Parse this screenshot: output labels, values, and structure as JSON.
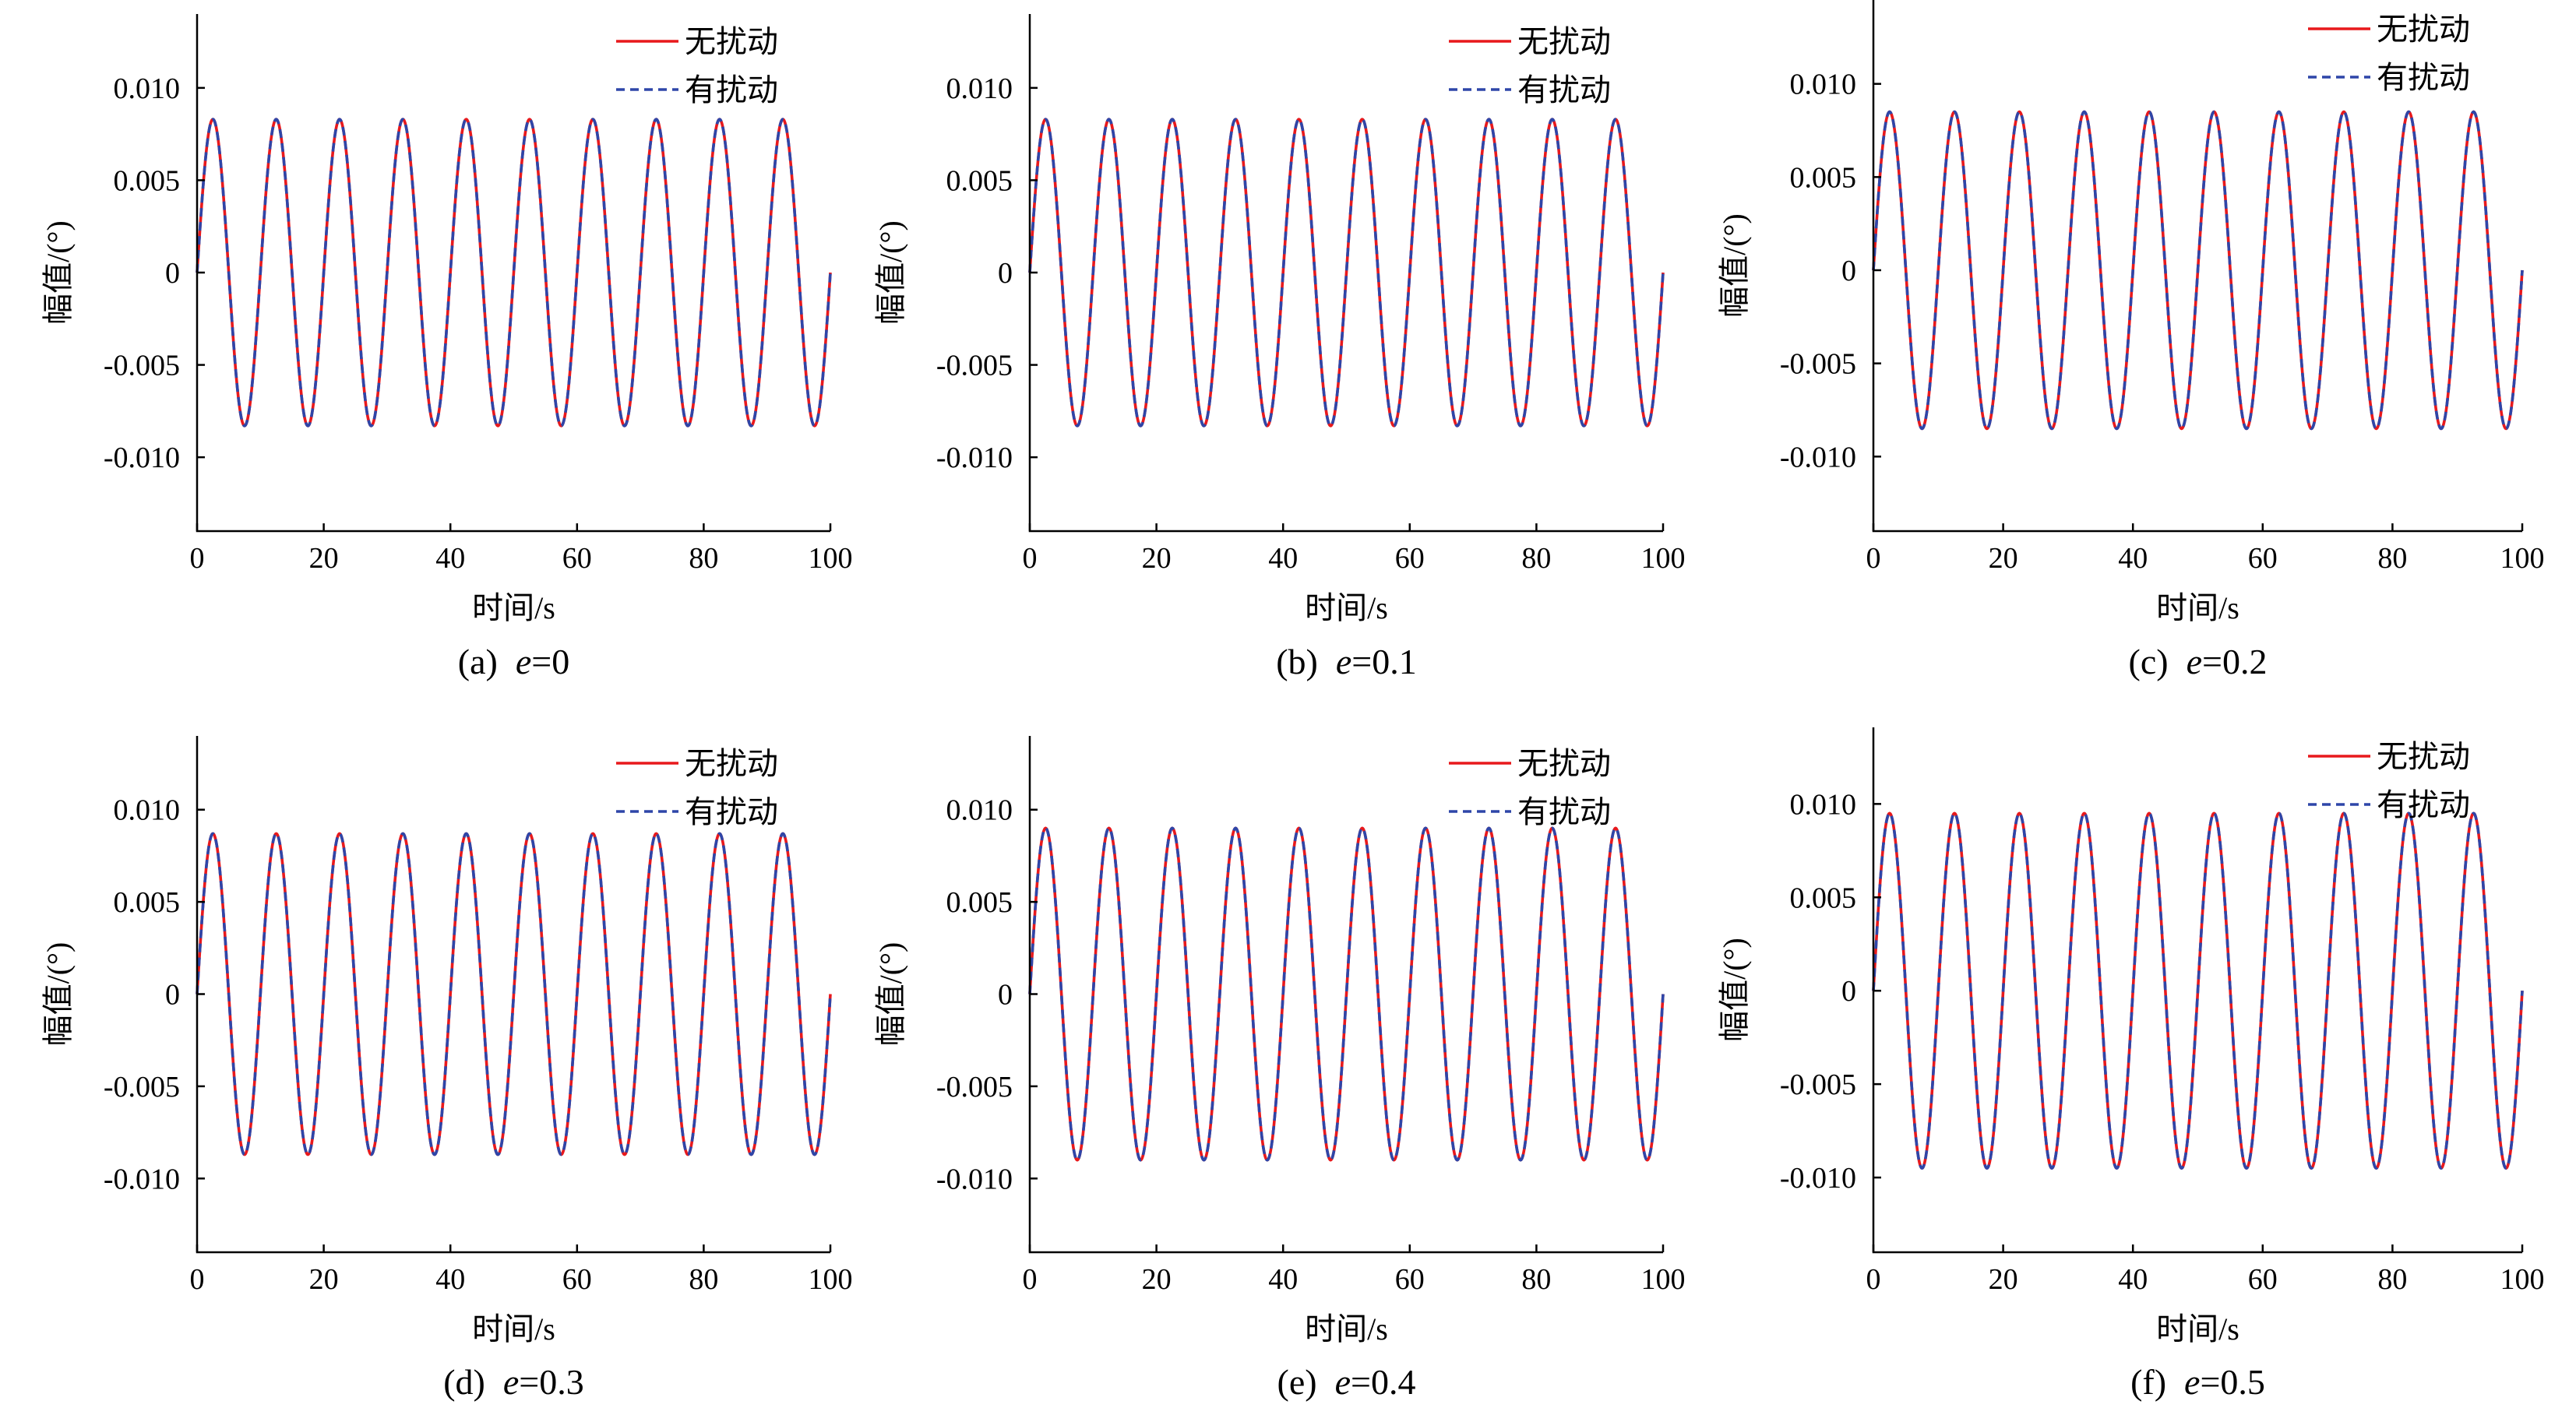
{
  "figure": {
    "panels": [
      {
        "id": "a",
        "caption_prefix": "(a)",
        "caption_var": "e",
        "caption_value": "=0"
      },
      {
        "id": "b",
        "caption_prefix": "(b)",
        "caption_var": "e",
        "caption_value": "=0.1"
      },
      {
        "id": "c",
        "caption_prefix": "(c)",
        "caption_var": "e",
        "caption_value": "=0.2"
      },
      {
        "id": "d",
        "caption_prefix": "(d)",
        "caption_var": "e",
        "caption_value": "=0.3"
      },
      {
        "id": "e",
        "caption_prefix": "(e)",
        "caption_var": "e",
        "caption_value": "=0.4"
      },
      {
        "id": "f",
        "caption_prefix": "(f)",
        "caption_var": "e",
        "caption_value": "=0.5"
      }
    ]
  },
  "chart_data": [
    {
      "type": "line",
      "panel": "(a) e=0",
      "xlabel": "时间/s",
      "ylabel": "幅值/(°)",
      "xlim": [
        0,
        100
      ],
      "ylim": [
        -0.014,
        0.014
      ],
      "xticks": [
        0,
        20,
        40,
        60,
        80,
        100
      ],
      "xtick_labels": [
        "0",
        "20",
        "40",
        "60",
        "80",
        "100"
      ],
      "yticks": [
        0.01,
        0.005,
        0,
        -0.005,
        -0.01
      ],
      "ytick_labels": [
        "0.010",
        "0.005",
        "0",
        "-0.005",
        "-0.010"
      ],
      "legend_position": "top-right",
      "series": [
        {
          "name": "无扰动",
          "color": "#e8191c",
          "style": "solid",
          "function": "y = A·sin(2πx/T)",
          "amplitude": 0.0083,
          "period_s": 10
        },
        {
          "name": "有扰动",
          "color": "#2e46a8",
          "style": "dashed",
          "function": "y = A·sin(2πx/T)",
          "amplitude": 0.0083,
          "period_s": 10
        }
      ]
    },
    {
      "type": "line",
      "panel": "(b) e=0.1",
      "xlabel": "时间/s",
      "ylabel": "幅值/(°)",
      "xlim": [
        0,
        100
      ],
      "ylim": [
        -0.014,
        0.014
      ],
      "xticks": [
        0,
        20,
        40,
        60,
        80,
        100
      ],
      "xtick_labels": [
        "0",
        "20",
        "40",
        "60",
        "80",
        "100"
      ],
      "yticks": [
        0.01,
        0.005,
        0,
        -0.005,
        -0.01
      ],
      "ytick_labels": [
        "0.010",
        "0.005",
        "0",
        "-0.005",
        "-0.010"
      ],
      "legend_position": "top-right",
      "series": [
        {
          "name": "无扰动",
          "color": "#e8191c",
          "style": "solid",
          "function": "y = A·sin(2πx/T)",
          "amplitude": 0.0083,
          "period_s": 10
        },
        {
          "name": "有扰动",
          "color": "#2e46a8",
          "style": "dashed",
          "function": "y = A·sin(2πx/T)",
          "amplitude": 0.0083,
          "period_s": 10
        }
      ]
    },
    {
      "type": "line",
      "panel": "(c) e=0.2",
      "xlabel": "时间/s",
      "ylabel": "幅值/(°)",
      "xlim": [
        0,
        100
      ],
      "ylim": [
        -0.014,
        0.0145
      ],
      "xticks": [
        0,
        20,
        40,
        60,
        80,
        100
      ],
      "xtick_labels": [
        "0",
        "20",
        "40",
        "60",
        "80",
        "100"
      ],
      "yticks": [
        0.01,
        0.005,
        0,
        -0.005,
        -0.01
      ],
      "ytick_labels": [
        "0.010",
        "0.005",
        "0",
        "-0.005",
        "-0.010"
      ],
      "legend_position": "top-right",
      "series": [
        {
          "name": "无扰动",
          "color": "#e8191c",
          "style": "solid",
          "function": "y = A·sin(2πx/T)",
          "amplitude": 0.0085,
          "period_s": 10
        },
        {
          "name": "有扰动",
          "color": "#2e46a8",
          "style": "dashed",
          "function": "y = A·sin(2πx/T)",
          "amplitude": 0.0085,
          "period_s": 10
        }
      ]
    },
    {
      "type": "line",
      "panel": "(d) e=0.3",
      "xlabel": "时间/s",
      "ylabel": "幅值/(°)",
      "xlim": [
        0,
        100
      ],
      "ylim": [
        -0.014,
        0.014
      ],
      "xticks": [
        0,
        20,
        40,
        60,
        80,
        100
      ],
      "xtick_labels": [
        "0",
        "20",
        "40",
        "60",
        "80",
        "100"
      ],
      "yticks": [
        0.01,
        0.005,
        0,
        -0.005,
        -0.01
      ],
      "ytick_labels": [
        "0.010",
        "0.005",
        "0",
        "-0.005",
        "-0.010"
      ],
      "legend_position": "top-right",
      "series": [
        {
          "name": "无扰动",
          "color": "#e8191c",
          "style": "solid",
          "function": "y = A·sin(2πx/T)",
          "amplitude": 0.0087,
          "period_s": 10
        },
        {
          "name": "有扰动",
          "color": "#2e46a8",
          "style": "dashed",
          "function": "y = A·sin(2πx/T)",
          "amplitude": 0.0087,
          "period_s": 10
        }
      ]
    },
    {
      "type": "line",
      "panel": "(e) e=0.4",
      "xlabel": "时间/s",
      "ylabel": "幅值/(°)",
      "xlim": [
        0,
        100
      ],
      "ylim": [
        -0.014,
        0.014
      ],
      "xticks": [
        0,
        20,
        40,
        60,
        80,
        100
      ],
      "xtick_labels": [
        "0",
        "20",
        "40",
        "60",
        "80",
        "100"
      ],
      "yticks": [
        0.01,
        0.005,
        0,
        -0.005,
        -0.01
      ],
      "ytick_labels": [
        "0.010",
        "0.005",
        "0",
        "-0.005",
        "-0.010"
      ],
      "legend_position": "top-right",
      "series": [
        {
          "name": "无扰动",
          "color": "#e8191c",
          "style": "solid",
          "function": "y = A·sin(2πx/T)",
          "amplitude": 0.009,
          "period_s": 10
        },
        {
          "name": "有扰动",
          "color": "#2e46a8",
          "style": "dashed",
          "function": "y = A·sin(2πx/T)",
          "amplitude": 0.009,
          "period_s": 10
        }
      ]
    },
    {
      "type": "line",
      "panel": "(f) e=0.5",
      "xlabel": "时间/s",
      "ylabel": "幅值/(°)",
      "xlim": [
        0,
        100
      ],
      "ylim": [
        -0.014,
        0.0141
      ],
      "xticks": [
        0,
        20,
        40,
        60,
        80,
        100
      ],
      "xtick_labels": [
        "0",
        "20",
        "40",
        "60",
        "80",
        "100"
      ],
      "yticks": [
        0.01,
        0.005,
        0,
        -0.005,
        -0.01
      ],
      "ytick_labels": [
        "0.010",
        "0.005",
        "0",
        "-0.005",
        "-0.010"
      ],
      "legend_position": "top-right",
      "series": [
        {
          "name": "无扰动",
          "color": "#e8191c",
          "style": "solid",
          "function": "y = A·sin(2πx/T)",
          "amplitude": 0.0095,
          "period_s": 10
        },
        {
          "name": "有扰动",
          "color": "#2e46a8",
          "style": "dashed",
          "function": "y = A·sin(2πx/T)",
          "amplitude": 0.0095,
          "period_s": 10
        }
      ]
    }
  ]
}
